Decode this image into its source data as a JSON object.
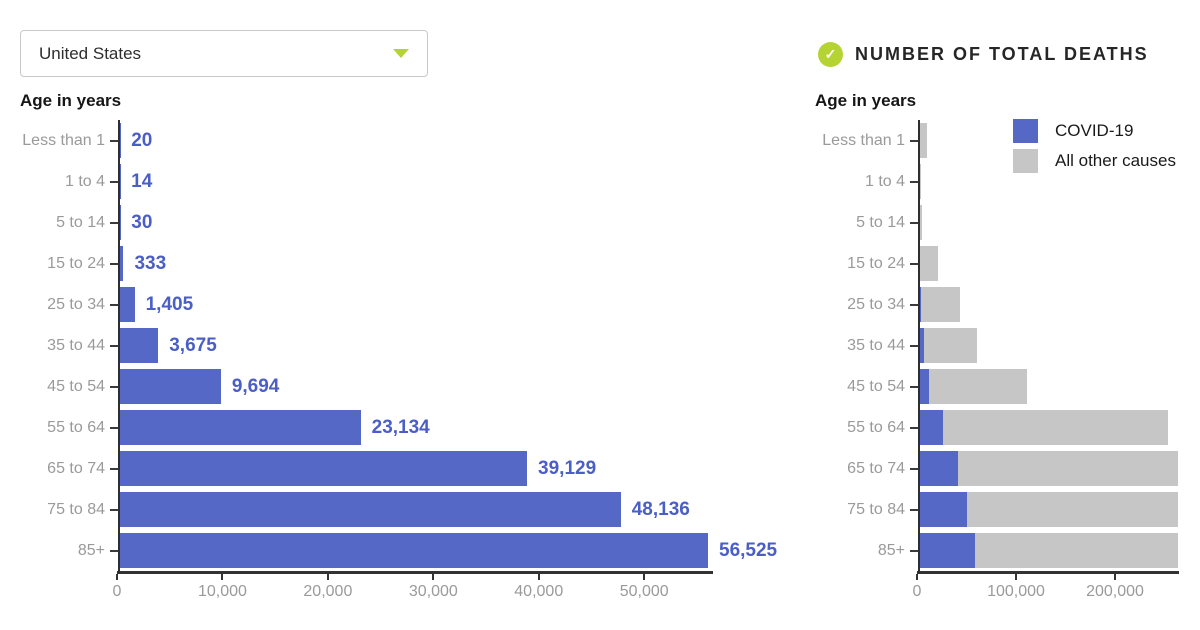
{
  "left": {
    "dropdown": {
      "value": "United States"
    },
    "axis_title": "Age in years"
  },
  "right": {
    "title": "NUMBER OF TOTAL DEATHS",
    "badge_icon": "check",
    "check_glyph": "✓",
    "axis_title": "Age in years",
    "legend": [
      {
        "label": "COVID-19",
        "color": "#5568c6"
      },
      {
        "label": "All other causes",
        "color": "#c6c6c6"
      }
    ]
  },
  "colors": {
    "covid_blue": "#5568c6",
    "other_gray": "#c6c6c6",
    "value_text_blue": "#4a5ec6",
    "accent_green": "#b5d333",
    "axis_dark": "#333333",
    "label_gray": "#9a9a9a"
  },
  "chart_data": [
    {
      "type": "bar",
      "orientation": "horizontal",
      "title": "COVID-19 deaths by age",
      "ylabel": "Age in years",
      "xlabel": "",
      "grid": false,
      "categories": [
        "Less than 1",
        "1 to 4",
        "5 to 14",
        "15 to 24",
        "25 to 34",
        "35 to 44",
        "45 to 54",
        "55 to 64",
        "65 to 74",
        "75 to 84",
        "85+"
      ],
      "values": [
        20,
        14,
        30,
        333,
        1405,
        3675,
        9694,
        23134,
        39129,
        48136,
        56525
      ],
      "value_labels": [
        "20",
        "14",
        "30",
        "333",
        "1,405",
        "3,675",
        "9,694",
        "23,134",
        "39,129",
        "48,136",
        "56,525"
      ],
      "bar_color": "#5568c6",
      "xlim": [
        0,
        56525
      ],
      "xticks": [
        0,
        10000,
        20000,
        30000,
        40000,
        50000
      ],
      "xtick_labels": [
        "0",
        "10,000",
        "20,000",
        "30,000",
        "40,000",
        "50,000"
      ]
    },
    {
      "type": "bar",
      "subtype": "stacked",
      "orientation": "horizontal",
      "title": "NUMBER OF TOTAL DEATHS",
      "ylabel": "Age in years",
      "xlabel": "",
      "grid": false,
      "legend_position": "top-right",
      "categories": [
        "Less than 1",
        "1 to 4",
        "5 to 14",
        "15 to 24",
        "25 to 34",
        "35 to 44",
        "45 to 54",
        "55 to 64",
        "65 to 74",
        "75 to 84",
        "85+"
      ],
      "series": [
        {
          "name": "COVID-19",
          "color": "#5568c6",
          "values": [
            20,
            14,
            30,
            333,
            1405,
            3675,
            9694,
            23134,
            39129,
            48136,
            56525
          ]
        },
        {
          "name": "All other causes",
          "color": "#c6c6c6",
          "values": [
            7500,
            1000,
            2000,
            18000,
            40000,
            55000,
            100000,
            231000,
            280000,
            320000,
            340000
          ]
        }
      ],
      "note_values_estimated_from_pixels": true,
      "bars_clipped_at_right_edge": [
        "65 to 74",
        "75 to 84",
        "85+"
      ],
      "xlim": [
        0,
        264600
      ],
      "xticks": [
        0,
        100000,
        200000
      ],
      "xtick_labels": [
        "0",
        "100,000",
        "200,000"
      ]
    }
  ]
}
